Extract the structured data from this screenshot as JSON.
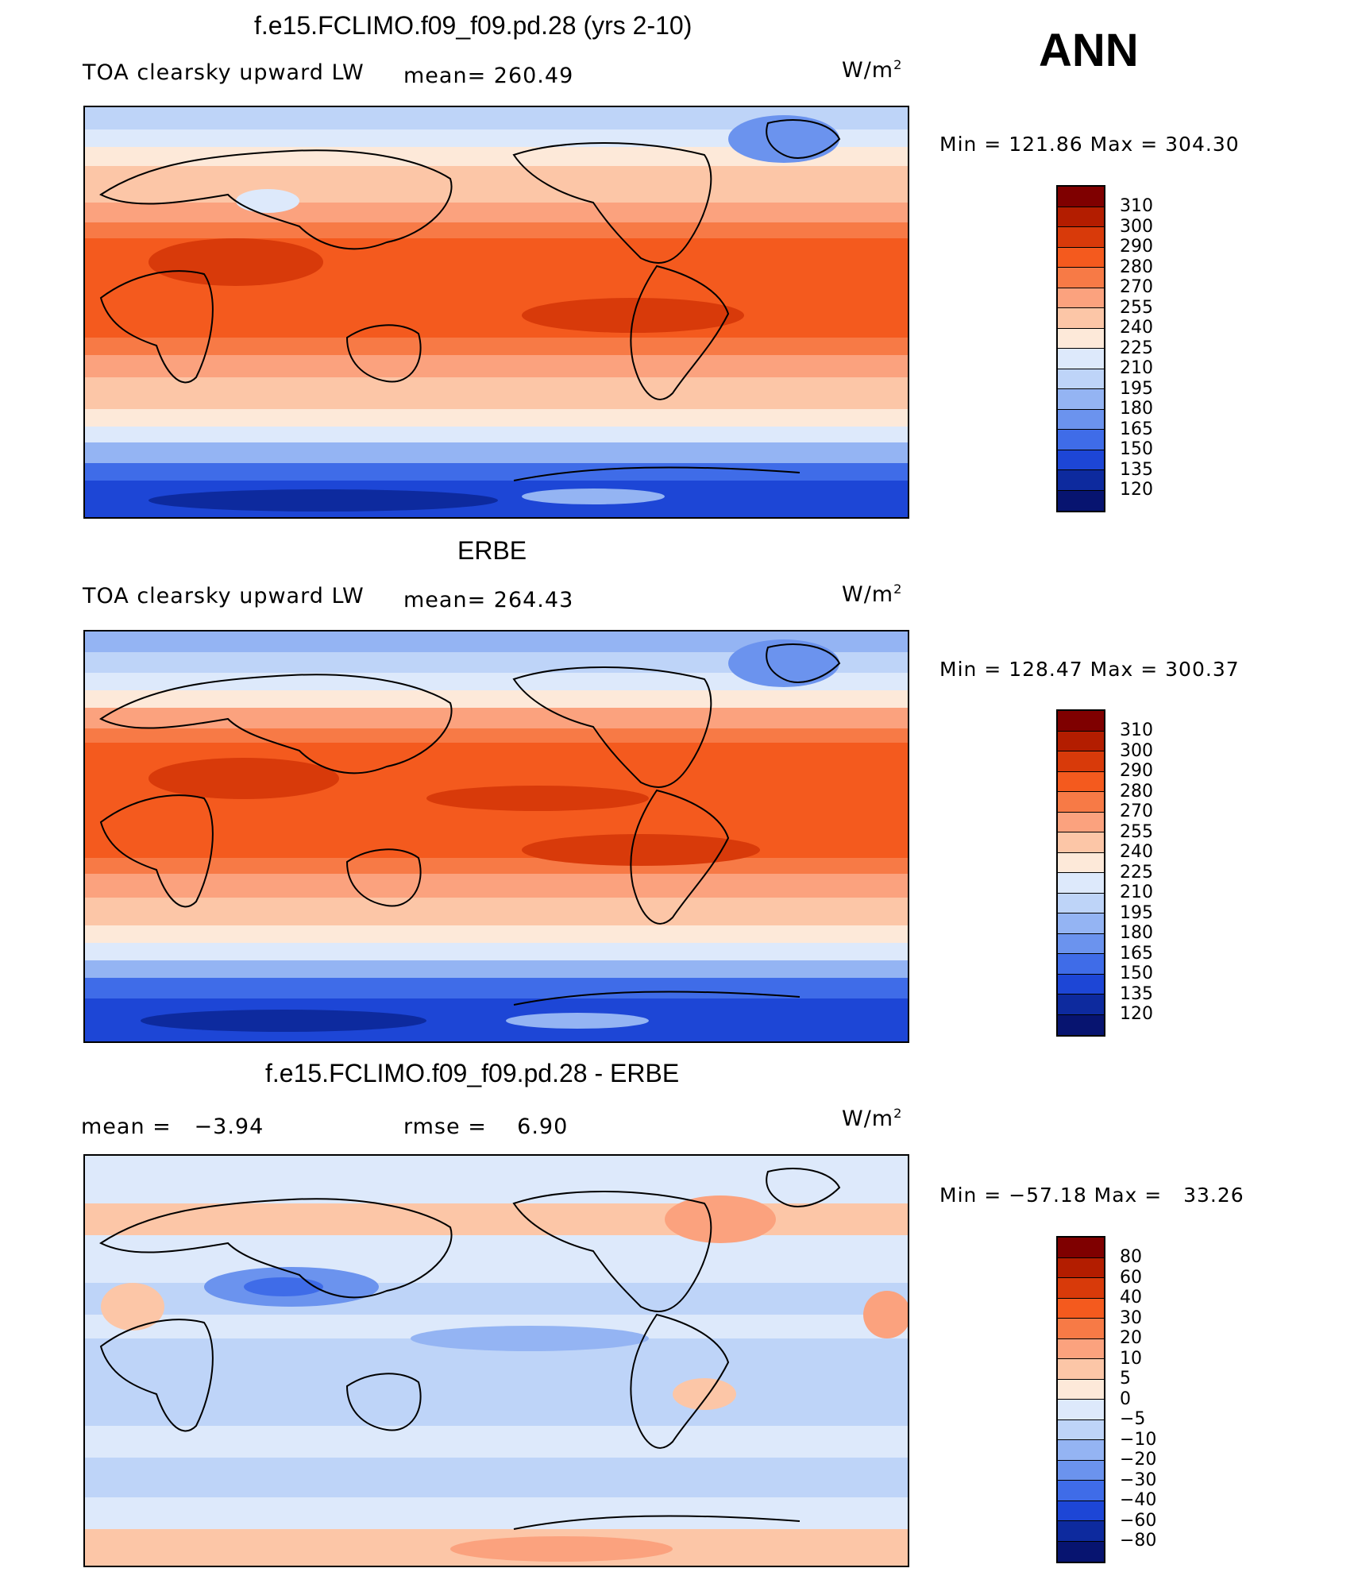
{
  "season": "ANN",
  "panels": [
    {
      "title": "f.e15.FCLIMO.f09_f09.pd.28 (yrs 2-10)",
      "variable": "TOA clearsky upward LW",
      "stat_text": "mean= 260.49",
      "units": "W/m",
      "units_sup": "2",
      "minmax": "Min = 121.86 Max = 304.30",
      "levels": [
        "310",
        "300",
        "290",
        "280",
        "270",
        "255",
        "240",
        "225",
        "210",
        "195",
        "180",
        "165",
        "150",
        "135",
        "120"
      ],
      "colors": [
        "#7f0000",
        "#b31d00",
        "#d83a0a",
        "#f45a1e",
        "#f77a46",
        "#fba27e",
        "#fcc6a7",
        "#fde9d9",
        "#dde9fb",
        "#bed4f8",
        "#94b4f3",
        "#6b93ee",
        "#3f6ce8",
        "#1d46d6",
        "#0d2a9e",
        "#071470"
      ]
    },
    {
      "title": "ERBE",
      "variable": "TOA clearsky upward LW",
      "stat_text": "mean= 264.43",
      "units": "W/m",
      "units_sup": "2",
      "minmax": "Min = 128.47 Max = 300.37",
      "levels": [
        "310",
        "300",
        "290",
        "280",
        "270",
        "255",
        "240",
        "225",
        "210",
        "195",
        "180",
        "165",
        "150",
        "135",
        "120"
      ],
      "colors": [
        "#7f0000",
        "#b31d00",
        "#d83a0a",
        "#f45a1e",
        "#f77a46",
        "#fba27e",
        "#fcc6a7",
        "#fde9d9",
        "#dde9fb",
        "#bed4f8",
        "#94b4f3",
        "#6b93ee",
        "#3f6ce8",
        "#1d46d6",
        "#0d2a9e",
        "#071470"
      ]
    },
    {
      "title": "f.e15.FCLIMO.f09_f09.pd.28 - ERBE",
      "mean_text": "mean =   −3.94",
      "rmse_text": "rmse =    6.90",
      "units": "W/m",
      "units_sup": "2",
      "minmax": "Min = −57.18 Max =   33.26",
      "levels": [
        "80",
        "60",
        "40",
        "30",
        "20",
        "10",
        "5",
        "0",
        "−5",
        "−10",
        "−20",
        "−30",
        "−40",
        "−60",
        "−80"
      ],
      "colors": [
        "#7f0000",
        "#b31d00",
        "#d83a0a",
        "#f45a1e",
        "#f77a46",
        "#fba27e",
        "#fcc6a7",
        "#fde9d9",
        "#dde9fb",
        "#bed4f8",
        "#94b4f3",
        "#6b93ee",
        "#3f6ce8",
        "#1d46d6",
        "#0d2a9e",
        "#071470"
      ]
    }
  ]
}
